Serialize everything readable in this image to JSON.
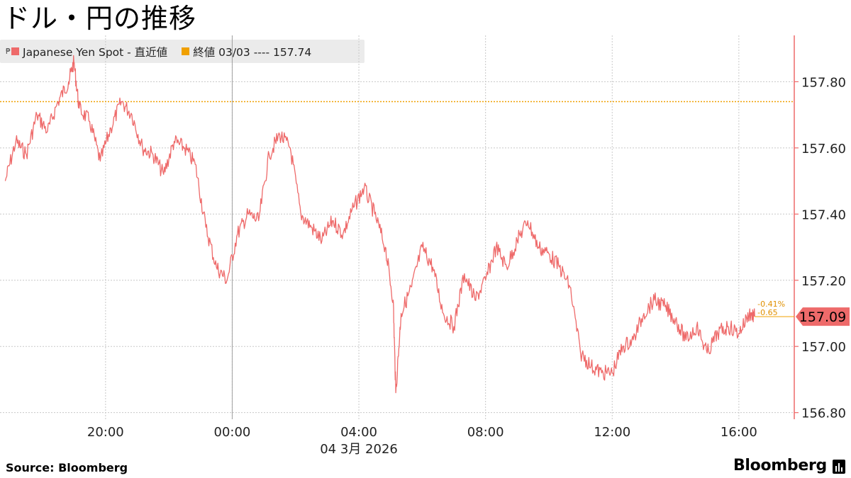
{
  "title": "ドル・円の推移",
  "legend": {
    "pin": "₱",
    "series_label": "Japanese Yen Spot - 直近値",
    "close_label": "終値 03/03 ---- 157.74"
  },
  "source": "Source:  Bloomberg",
  "brand": "Bloomberg",
  "colors": {
    "series": "#ee6a6a",
    "close_line": "#f0a000",
    "axis": "#ee6a6a",
    "legend_bg": "#ebebeb"
  },
  "chart_data": {
    "type": "line",
    "title": "ドル・円の推移",
    "date_label": "04 3月  2026",
    "series": [
      {
        "name": "Japanese Yen Spot - 直近値",
        "x": [
          "16:50",
          "17:10",
          "17:30",
          "17:50",
          "18:10",
          "18:30",
          "18:50",
          "19:00",
          "19:10",
          "19:30",
          "19:50",
          "20:10",
          "20:30",
          "20:50",
          "21:10",
          "21:30",
          "21:50",
          "22:10",
          "22:30",
          "22:50",
          "23:10",
          "23:30",
          "23:50",
          "00:10",
          "00:30",
          "00:50",
          "01:10",
          "01:30",
          "01:50",
          "02:10",
          "02:30",
          "02:50",
          "03:10",
          "03:30",
          "03:50",
          "04:10",
          "04:30",
          "04:50",
          "05:05",
          "05:10",
          "05:20",
          "05:40",
          "06:00",
          "06:20",
          "06:40",
          "07:00",
          "07:20",
          "07:40",
          "08:00",
          "08:20",
          "08:40",
          "09:00",
          "09:20",
          "09:40",
          "10:00",
          "10:20",
          "10:40",
          "11:00",
          "11:20",
          "11:40",
          "12:00",
          "12:20",
          "12:40",
          "13:00",
          "13:20",
          "13:40",
          "14:00",
          "14:20",
          "14:40",
          "15:00",
          "15:20",
          "15:40",
          "16:00",
          "16:20",
          "16:30"
        ],
        "values": [
          157.5,
          157.62,
          157.58,
          157.7,
          157.65,
          157.74,
          157.8,
          157.86,
          157.72,
          157.68,
          157.56,
          157.66,
          157.74,
          157.7,
          157.6,
          157.58,
          157.52,
          157.62,
          157.6,
          157.55,
          157.36,
          157.24,
          157.2,
          157.34,
          157.4,
          157.38,
          157.58,
          157.64,
          157.6,
          157.4,
          157.36,
          157.32,
          157.38,
          157.34,
          157.42,
          157.48,
          157.4,
          157.3,
          157.14,
          156.86,
          157.1,
          157.18,
          157.3,
          157.24,
          157.1,
          157.06,
          157.22,
          157.14,
          157.2,
          157.3,
          157.24,
          157.32,
          157.38,
          157.3,
          157.28,
          157.24,
          157.18,
          156.98,
          156.94,
          156.92,
          156.92,
          157.0,
          157.02,
          157.1,
          157.14,
          157.12,
          157.08,
          157.02,
          157.06,
          156.98,
          157.04,
          157.06,
          157.04,
          157.1,
          157.09
        ]
      }
    ],
    "close_value": 157.74,
    "last_value": "157.09",
    "annotations": {
      "pct_change": "-0.41%",
      "abs_change": "-0.65"
    },
    "x_ticks": [
      "20:00",
      "00:00",
      "04:00",
      "08:00",
      "12:00",
      "16:00"
    ],
    "y_ticks": [
      "156.80",
      "157.00",
      "157.20",
      "157.40",
      "157.60",
      "157.80"
    ],
    "ylim": [
      156.78,
      157.94
    ],
    "xlim_hours": [
      "16:40",
      "17:45"
    ],
    "y_axis_position": "right",
    "grid": true,
    "legend_position": "top-left"
  }
}
